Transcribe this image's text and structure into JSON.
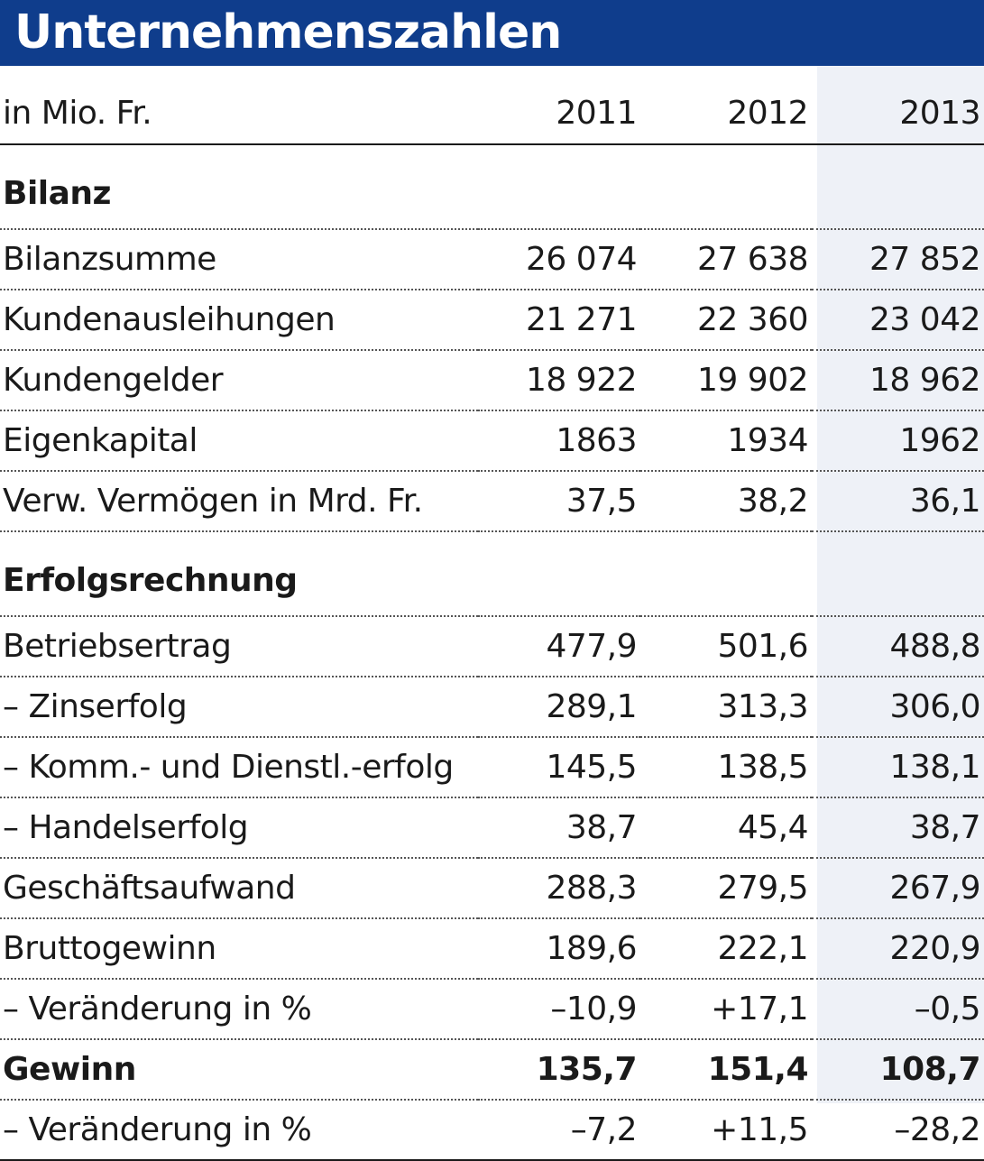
{
  "title": "Unternehmenszahlen",
  "table": {
    "unit_label": "in Mio. Fr.",
    "years": [
      "2011",
      "2012",
      "2013"
    ],
    "sections": [
      {
        "heading": "Bilanz",
        "rows": [
          {
            "label": "Bilanzsumme",
            "values": [
              "26 074",
              "27 638",
              "27 852"
            ]
          },
          {
            "label": "Kundenausleihungen",
            "values": [
              "21 271",
              "22 360",
              "23 042"
            ]
          },
          {
            "label": "Kundengelder",
            "values": [
              "18 922",
              "19 902",
              "18 962"
            ]
          },
          {
            "label": "Eigenkapital",
            "values": [
              "1863",
              "1934",
              "1962"
            ]
          },
          {
            "label": "Verw. Vermögen in Mrd. Fr.",
            "values": [
              "37,5",
              "38,2",
              "36,1"
            ]
          }
        ]
      },
      {
        "heading": "Erfolgsrechnung",
        "rows": [
          {
            "label": "Betriebsertrag",
            "values": [
              "477,9",
              "501,6",
              "488,8"
            ]
          },
          {
            "label": "– Zinserfolg",
            "values": [
              "289,1",
              "313,3",
              "306,0"
            ]
          },
          {
            "label": "– Komm.- und Dienstl.-erfolg",
            "values": [
              "145,5",
              "138,5",
              "138,1"
            ]
          },
          {
            "label": "– Handelserfolg",
            "values": [
              "38,7",
              "45,4",
              "38,7"
            ]
          },
          {
            "label": "Geschäftsaufwand",
            "values": [
              "288,3",
              "279,5",
              "267,9"
            ]
          },
          {
            "label": "Bruttogewinn",
            "values": [
              "189,6",
              "222,1",
              "220,9"
            ]
          },
          {
            "label": "– Veränderung in %",
            "values": [
              "–10,9",
              "+17,1",
              "–0,5"
            ]
          },
          {
            "label": "Gewinn",
            "values": [
              "135,7",
              "151,4",
              "108,7"
            ]
          },
          {
            "label": "– Veränderung in %",
            "values": [
              "–7,2",
              "+11,5",
              "–28,2"
            ]
          }
        ]
      }
    ]
  },
  "colors": {
    "title_bar": "#0f3d8c",
    "highlight_column": "#eef1f7"
  }
}
